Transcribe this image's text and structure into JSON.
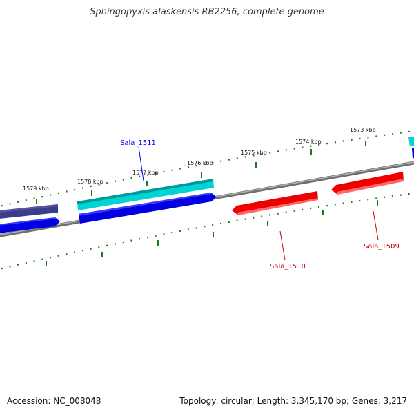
{
  "title": "Sphingopyxis alaskensis RB2256, complete genome",
  "accession_text": "Accession: NC_008048",
  "summary_text": "Topology: circular; Length: 3,345,170 bp; Genes: 3,217",
  "ticks": [
    {
      "label": "1573 kbp"
    },
    {
      "label": "1574 kbp"
    },
    {
      "label": "1575 kbp"
    },
    {
      "label": "1576 kbp"
    },
    {
      "label": "1577 kbp"
    },
    {
      "label": "1578 kbp"
    },
    {
      "label": "1579 kbp"
    }
  ],
  "genes": [
    {
      "name": "Sala_1509",
      "strand": "reverse",
      "color": "#ff0000"
    },
    {
      "name": "Sala_1510",
      "strand": "reverse",
      "color": "#ff0000"
    },
    {
      "name": "Sala_1511",
      "strand": "forward",
      "color": "#0000ff"
    }
  ],
  "colors": {
    "forward_cds": "#0000ff",
    "reverse_cds": "#ff0000",
    "forward_feature": "#00c8c8",
    "other_feature": "#3c3c8c",
    "backbone": "#808080",
    "ticks": "#1a7a1a"
  }
}
